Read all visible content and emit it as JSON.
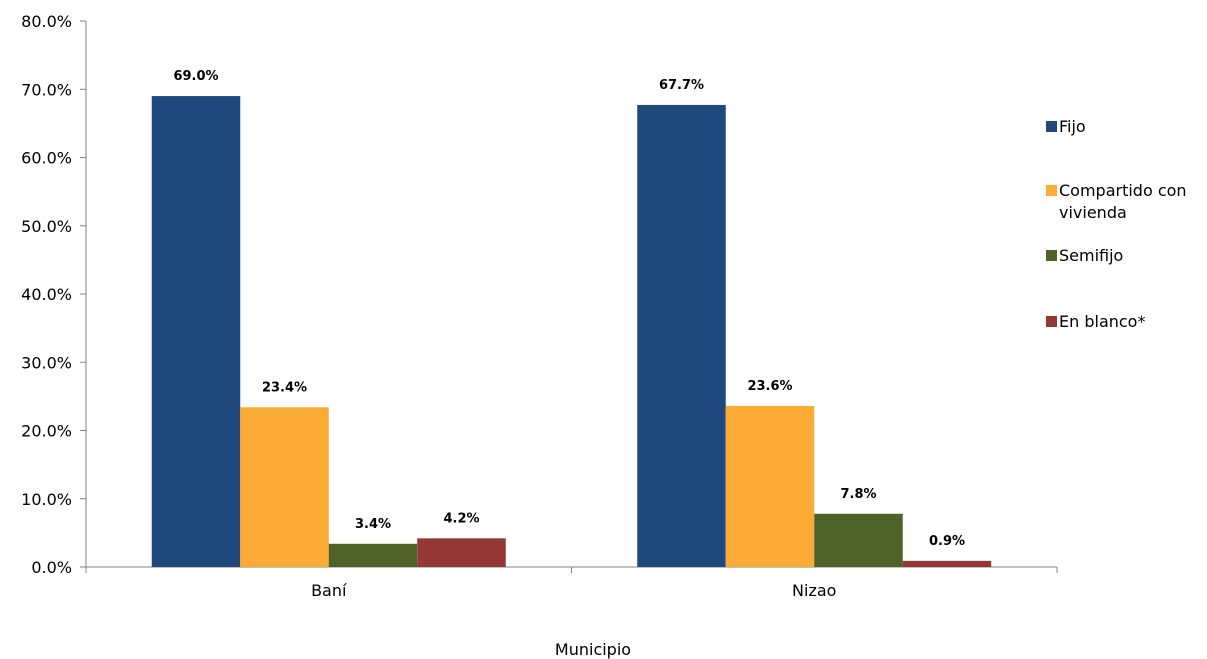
{
  "chart_data": {
    "type": "bar",
    "title": "",
    "xlabel": "Municipio",
    "ylabel": "",
    "ylim": [
      0,
      80
    ],
    "yticks": [
      0,
      10,
      20,
      30,
      40,
      50,
      60,
      70,
      80
    ],
    "ytick_labels": [
      "0.0%",
      "10.0%",
      "20.0%",
      "30.0%",
      "40.0%",
      "50.0%",
      "60.0%",
      "70.0%",
      "80.0%"
    ],
    "grid": false,
    "legend_position": "right",
    "categories": [
      "Baní",
      "Nizao"
    ],
    "series": [
      {
        "name": "Fijo",
        "color": "#1F497D",
        "values": [
          69.0,
          67.7
        ],
        "labels": [
          "69.0%",
          "67.7%"
        ]
      },
      {
        "name": "Compartido con vivienda",
        "legend_lines": [
          "Compartido con",
          "vivienda"
        ],
        "color": "#FBAB36",
        "values": [
          23.4,
          23.6
        ],
        "labels": [
          "23.4%",
          "23.6%"
        ]
      },
      {
        "name": "Semifijo",
        "color": "#4F6228",
        "values": [
          3.4,
          7.8
        ],
        "labels": [
          "3.4%",
          "7.8%"
        ]
      },
      {
        "name": "En blanco*",
        "color": "#953735",
        "values": [
          4.2,
          0.9
        ],
        "labels": [
          "4.2%",
          "0.9%"
        ]
      }
    ]
  }
}
